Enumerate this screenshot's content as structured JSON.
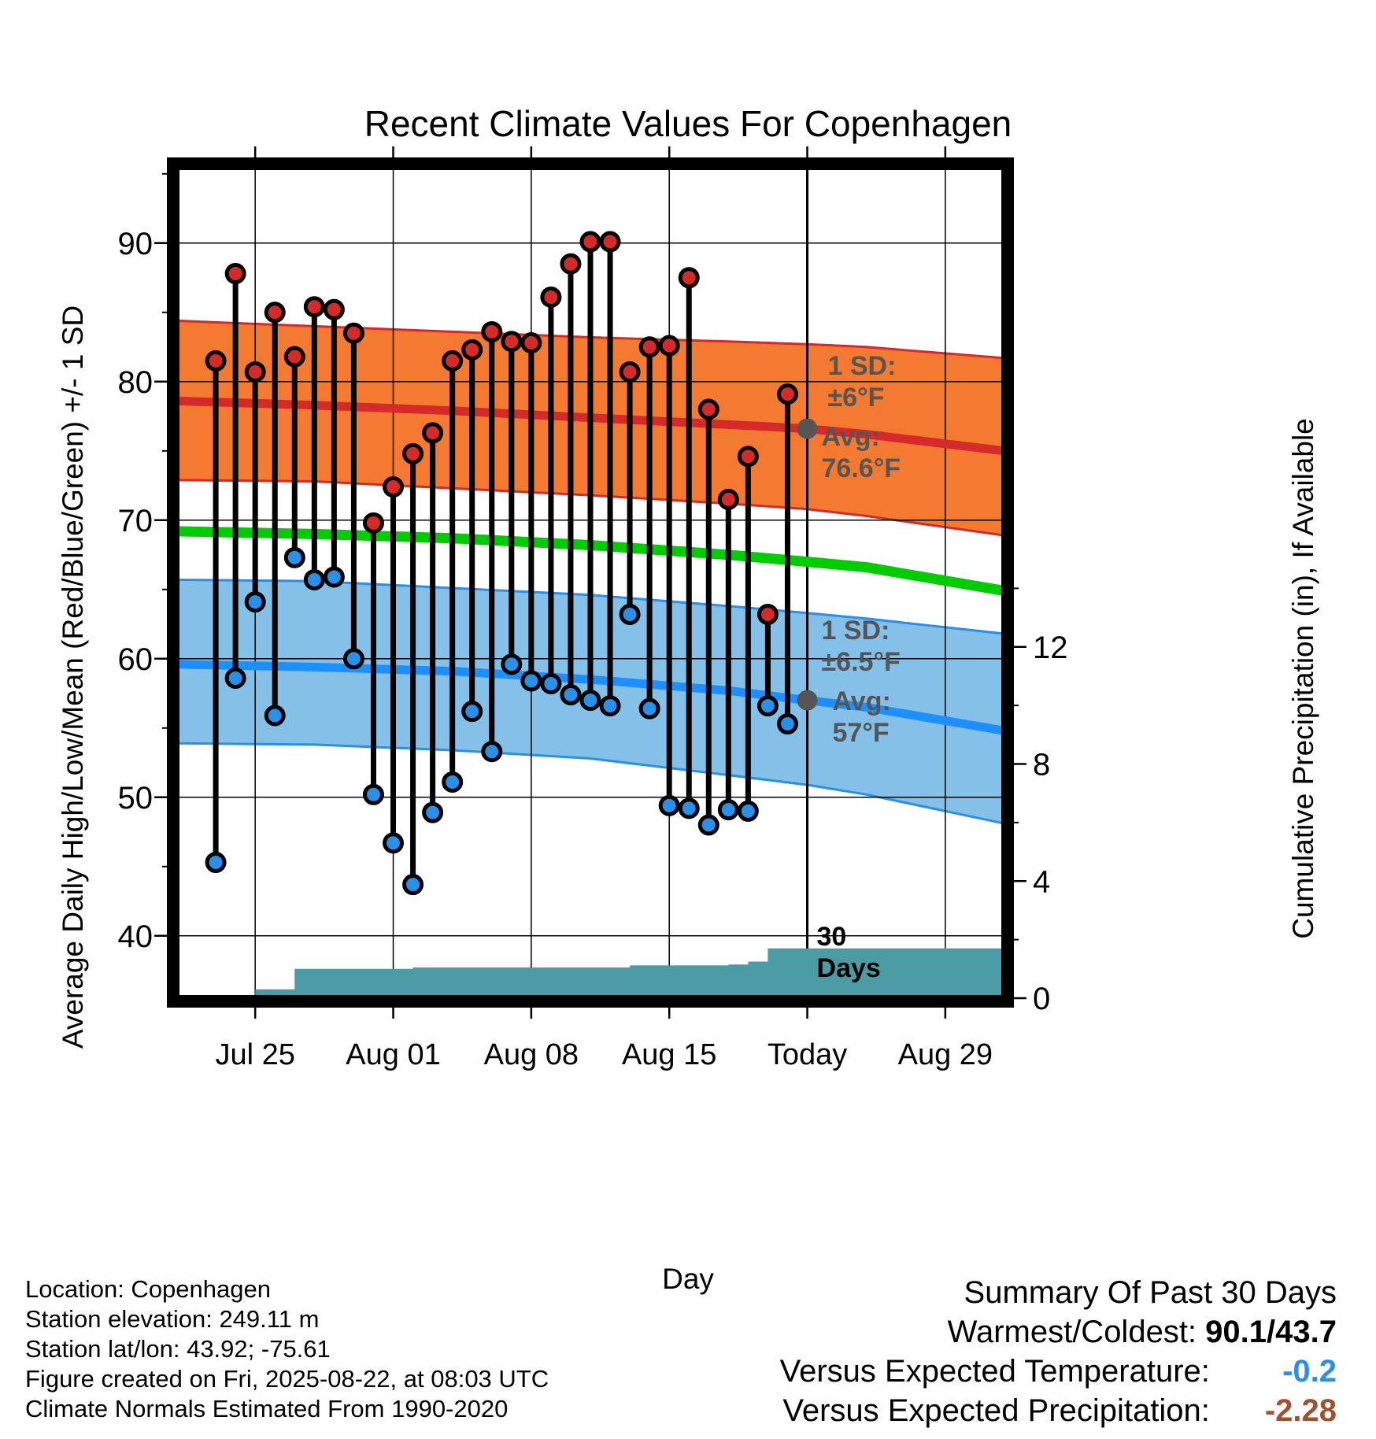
{
  "chart_data": {
    "type": "line",
    "title": "Recent Climate Values For Copenhagen",
    "xlabel": "Day",
    "ylabel": "Average Daily High/Low/Mean (Red/Blue/Green) +/- 1 SD",
    "y2label": "Cumulative Precipitation (in), If Available",
    "ylim": [
      35.5,
      95.5
    ],
    "y2lim": [
      0,
      28.4
    ],
    "yticks": [
      40,
      50,
      60,
      70,
      80,
      90
    ],
    "y2ticks": [
      0,
      4,
      8,
      12
    ],
    "x_range": [
      "2025-07-21",
      "2025-09-01"
    ],
    "x_ticks": [
      {
        "date": "2025-07-25",
        "label": "Jul 25"
      },
      {
        "date": "2025-08-01",
        "label": "Aug 01"
      },
      {
        "date": "2025-08-08",
        "label": "Aug 08"
      },
      {
        "date": "2025-08-15",
        "label": "Aug 15"
      },
      {
        "date": "2025-08-22",
        "label": "Today"
      },
      {
        "date": "2025-08-29",
        "label": "Aug 29"
      }
    ],
    "today": "2025-08-22",
    "grid": true,
    "normals": {
      "dates": [
        "2025-07-21",
        "2025-07-28",
        "2025-08-04",
        "2025-08-11",
        "2025-08-18",
        "2025-08-22",
        "2025-08-25",
        "2025-09-01"
      ],
      "high_avg": [
        78.6,
        78.3,
        77.9,
        77.4,
        76.9,
        76.6,
        76.2,
        75.0
      ],
      "high_upper": [
        84.4,
        84.0,
        83.6,
        83.2,
        82.9,
        82.7,
        82.5,
        81.7
      ],
      "high_lower": [
        72.9,
        72.8,
        72.3,
        71.8,
        71.2,
        70.8,
        70.3,
        68.9
      ],
      "mean": [
        69.2,
        69.0,
        68.7,
        68.2,
        67.5,
        67.0,
        66.6,
        64.9
      ],
      "low_avg": [
        59.6,
        59.4,
        59.1,
        58.5,
        57.7,
        57.0,
        56.5,
        54.8
      ],
      "low_upper": [
        65.7,
        65.6,
        65.1,
        64.6,
        63.8,
        63.3,
        62.9,
        61.8
      ],
      "low_lower": [
        53.9,
        53.8,
        53.4,
        52.8,
        51.6,
        50.9,
        50.2,
        48.1
      ]
    },
    "series": [
      {
        "name": "Daily High",
        "color": "#d42a2a",
        "dates": [
          "2025-07-23",
          "2025-07-24",
          "2025-07-25",
          "2025-07-26",
          "2025-07-27",
          "2025-07-28",
          "2025-07-29",
          "2025-07-30",
          "2025-07-31",
          "2025-08-01",
          "2025-08-02",
          "2025-08-03",
          "2025-08-04",
          "2025-08-05",
          "2025-08-06",
          "2025-08-07",
          "2025-08-08",
          "2025-08-09",
          "2025-08-10",
          "2025-08-11",
          "2025-08-12",
          "2025-08-13",
          "2025-08-14",
          "2025-08-15",
          "2025-08-16",
          "2025-08-17",
          "2025-08-18",
          "2025-08-19",
          "2025-08-20",
          "2025-08-21"
        ],
        "values": [
          81.5,
          87.8,
          80.7,
          85.0,
          81.8,
          85.4,
          85.2,
          83.5,
          69.8,
          72.4,
          74.8,
          76.3,
          81.5,
          82.3,
          83.6,
          82.9,
          82.8,
          86.1,
          88.5,
          90.1,
          90.1,
          80.7,
          82.5,
          82.6,
          87.5,
          78.0,
          71.5,
          74.6,
          63.2,
          79.1
        ]
      },
      {
        "name": "Daily Low",
        "color": "#2a8fe6",
        "dates": [
          "2025-07-23",
          "2025-07-24",
          "2025-07-25",
          "2025-07-26",
          "2025-07-27",
          "2025-07-28",
          "2025-07-29",
          "2025-07-30",
          "2025-07-31",
          "2025-08-01",
          "2025-08-02",
          "2025-08-03",
          "2025-08-04",
          "2025-08-05",
          "2025-08-06",
          "2025-08-07",
          "2025-08-08",
          "2025-08-09",
          "2025-08-10",
          "2025-08-11",
          "2025-08-12",
          "2025-08-13",
          "2025-08-14",
          "2025-08-15",
          "2025-08-16",
          "2025-08-17",
          "2025-08-18",
          "2025-08-19",
          "2025-08-20",
          "2025-08-21"
        ],
        "values": [
          45.3,
          58.6,
          64.1,
          55.9,
          67.3,
          65.7,
          65.9,
          60.0,
          50.2,
          46.7,
          43.7,
          48.9,
          51.1,
          56.2,
          53.3,
          59.6,
          58.4,
          58.2,
          57.4,
          57.0,
          56.6,
          63.2,
          56.4,
          49.4,
          49.2,
          48.0,
          49.1,
          49.0,
          56.6,
          55.3
        ]
      }
    ],
    "precip_cumulative": {
      "dates": [
        "2025-07-23",
        "2025-07-24",
        "2025-07-25",
        "2025-07-26",
        "2025-07-27",
        "2025-07-28",
        "2025-08-02",
        "2025-08-07",
        "2025-08-12",
        "2025-08-13",
        "2025-08-18",
        "2025-08-19",
        "2025-08-20",
        "2025-08-21",
        "2025-08-22",
        "2025-09-01"
      ],
      "values": [
        0.0,
        0.0,
        0.3,
        0.3,
        1.0,
        1.0,
        1.05,
        1.05,
        1.05,
        1.12,
        1.15,
        1.25,
        1.7,
        1.7,
        1.7,
        1.7
      ]
    },
    "annotations": [
      {
        "id": "high_sd",
        "lines": [
          "1 SD:",
          "±6°F"
        ]
      },
      {
        "id": "high_avg",
        "lines": [
          "Avg:",
          "76.6°F"
        ]
      },
      {
        "id": "low_sd",
        "lines": [
          "1 SD:",
          "±6.5°F"
        ]
      },
      {
        "id": "low_avg",
        "lines": [
          "Avg:",
          "57°F"
        ]
      },
      {
        "id": "days",
        "lines": [
          "30",
          "Days"
        ]
      }
    ]
  },
  "footer": {
    "location": "Location: Copenhagen",
    "elevation": "Station elevation: 249.11 m",
    "latlon": "Station lat/lon: 43.92; -75.61",
    "created": "Figure created on Fri, 2025-08-22, at 08:03 UTC",
    "normals": "Climate Normals Estimated From 1990-2020"
  },
  "summary": {
    "title": "Summary Of Past 30 Days",
    "warmest_coldest_label": "Warmest/Coldest:",
    "warmest_coldest_value": "90.1/43.7",
    "temp_label": "Versus Expected Temperature:",
    "temp_value": "-0.2",
    "temp_color": "#2a8fe6",
    "precip_label": "Versus Expected Precipitation:",
    "precip_value": "-2.28",
    "precip_color": "#a0522d"
  }
}
